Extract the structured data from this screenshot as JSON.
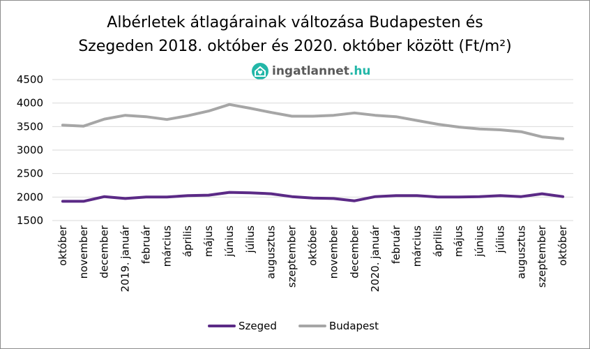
{
  "chart_data": {
    "type": "line",
    "title_line1": "Albérletek átlagárainak változása Budapesten és",
    "title_line2": "Szegeden  2018. október és 2020. október között (Ft/m²)",
    "watermark": {
      "brand": "ingatlannet",
      "tld": ".hu"
    },
    "categories": [
      "október",
      "november",
      "december",
      "2019. január",
      "február",
      "március",
      "április",
      "május",
      "június",
      "július",
      "augusztus",
      "szeptember",
      "október",
      "november",
      "december",
      "2020. január",
      "február",
      "március",
      "április",
      "május",
      "június",
      "július",
      "augusztus",
      "szeptember",
      "október"
    ],
    "series": [
      {
        "name": "Szeged",
        "color": "#5b2a86",
        "values": [
          1910,
          1910,
          2010,
          1970,
          2000,
          2000,
          2030,
          2040,
          2100,
          2090,
          2070,
          2010,
          1980,
          1970,
          1920,
          2010,
          2030,
          2030,
          2000,
          2000,
          2010,
          2030,
          2010,
          2070,
          2010
        ]
      },
      {
        "name": "Budapest",
        "color": "#a6a6a6",
        "values": [
          3530,
          3510,
          3660,
          3740,
          3710,
          3650,
          3730,
          3830,
          3970,
          3890,
          3800,
          3720,
          3720,
          3740,
          3790,
          3740,
          3710,
          3630,
          3550,
          3490,
          3450,
          3430,
          3390,
          3280,
          3240
        ]
      }
    ],
    "yticks": [
      1500,
      2000,
      2500,
      3000,
      3500,
      4000,
      4500
    ],
    "ylim": [
      1500,
      4500
    ],
    "grid": true,
    "legend_position": "bottom"
  }
}
